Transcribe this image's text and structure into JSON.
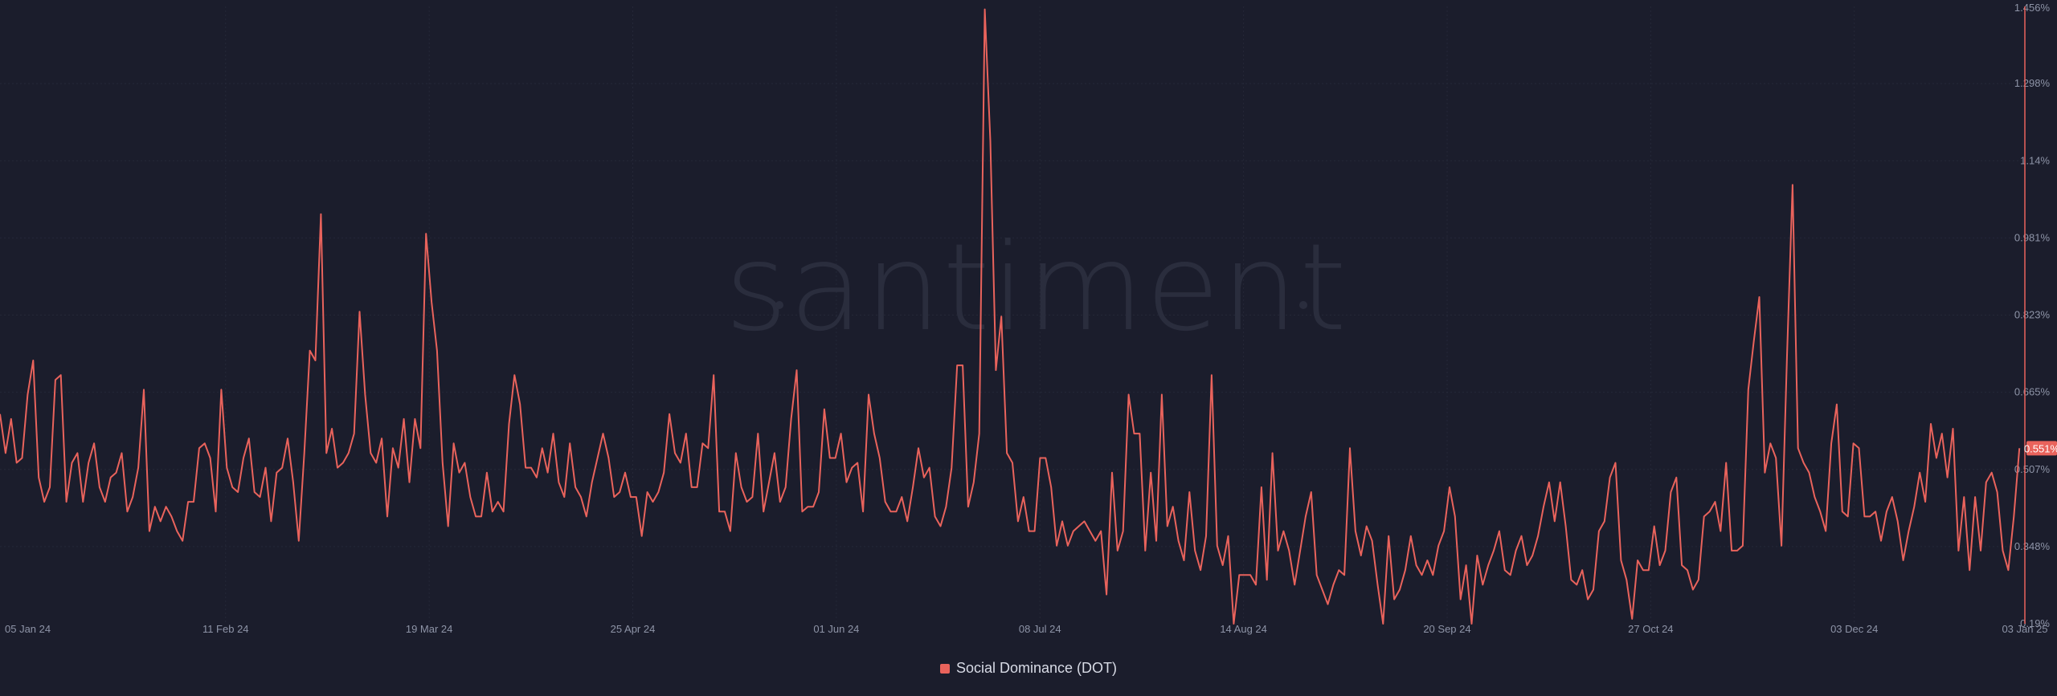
{
  "watermark": "santiment",
  "colors": {
    "background": "#1b1d2c",
    "series": "#e9635c",
    "grid": "#252838",
    "tick": "#8e94a7"
  },
  "chart_data": {
    "type": "line",
    "title": "",
    "xlabel": "",
    "ylabel": "",
    "x_start": "2024-01-01",
    "x_end": "2025-01-03",
    "ylim": [
      0.19,
      1.456
    ],
    "y_ticks": [
      "1.456%",
      "1.298%",
      "1.14%",
      "0.981%",
      "0.823%",
      "0.665%",
      "0.507%",
      "0.348%",
      "0.19%"
    ],
    "x_ticks": [
      {
        "date": "2024-01-05",
        "label": "05 Jan 24"
      },
      {
        "date": "2024-02-11",
        "label": "11 Feb 24"
      },
      {
        "date": "2024-03-19",
        "label": "19 Mar 24"
      },
      {
        "date": "2024-04-25",
        "label": "25 Apr 24"
      },
      {
        "date": "2024-06-01",
        "label": "01 Jun 24"
      },
      {
        "date": "2024-07-08",
        "label": "08 Jul 24"
      },
      {
        "date": "2024-08-14",
        "label": "14 Aug 24"
      },
      {
        "date": "2024-09-20",
        "label": "20 Sep 24"
      },
      {
        "date": "2024-10-27",
        "label": "27 Oct 24"
      },
      {
        "date": "2024-12-03",
        "label": "03 Dec 24"
      },
      {
        "date": "2025-01-03",
        "label": "03 Jan 25"
      }
    ],
    "last_value_label": "0.551%",
    "series": [
      {
        "name": "Social Dominance (DOT)",
        "values": [
          0.62,
          0.54,
          0.61,
          0.52,
          0.53,
          0.66,
          0.73,
          0.49,
          0.44,
          0.47,
          0.69,
          0.7,
          0.44,
          0.52,
          0.54,
          0.44,
          0.52,
          0.56,
          0.47,
          0.44,
          0.49,
          0.5,
          0.54,
          0.42,
          0.45,
          0.51,
          0.67,
          0.38,
          0.43,
          0.4,
          0.43,
          0.41,
          0.38,
          0.36,
          0.44,
          0.44,
          0.55,
          0.56,
          0.53,
          0.42,
          0.67,
          0.51,
          0.47,
          0.46,
          0.53,
          0.57,
          0.46,
          0.45,
          0.51,
          0.4,
          0.5,
          0.51,
          0.57,
          0.48,
          0.36,
          0.54,
          0.75,
          0.73,
          1.03,
          0.54,
          0.59,
          0.51,
          0.52,
          0.54,
          0.58,
          0.83,
          0.66,
          0.54,
          0.52,
          0.57,
          0.41,
          0.55,
          0.51,
          0.61,
          0.48,
          0.61,
          0.55,
          0.99,
          0.85,
          0.75,
          0.52,
          0.39,
          0.56,
          0.5,
          0.52,
          0.45,
          0.41,
          0.41,
          0.5,
          0.42,
          0.44,
          0.42,
          0.6,
          0.7,
          0.64,
          0.51,
          0.51,
          0.49,
          0.55,
          0.5,
          0.58,
          0.48,
          0.45,
          0.56,
          0.47,
          0.45,
          0.41,
          0.48,
          0.53,
          0.58,
          0.53,
          0.45,
          0.46,
          0.5,
          0.45,
          0.45,
          0.37,
          0.46,
          0.44,
          0.46,
          0.5,
          0.62,
          0.54,
          0.52,
          0.58,
          0.47,
          0.47,
          0.56,
          0.55,
          0.7,
          0.42,
          0.42,
          0.38,
          0.54,
          0.47,
          0.44,
          0.45,
          0.58,
          0.42,
          0.48,
          0.54,
          0.44,
          0.47,
          0.61,
          0.71,
          0.42,
          0.43,
          0.43,
          0.46,
          0.63,
          0.53,
          0.53,
          0.58,
          0.48,
          0.51,
          0.52,
          0.42,
          0.66,
          0.58,
          0.53,
          0.44,
          0.42,
          0.42,
          0.45,
          0.4,
          0.47,
          0.55,
          0.49,
          0.51,
          0.41,
          0.39,
          0.43,
          0.51,
          0.72,
          0.72,
          0.43,
          0.48,
          0.58,
          1.45,
          1.18,
          0.71,
          0.82,
          0.54,
          0.52,
          0.4,
          0.45,
          0.38,
          0.38,
          0.53,
          0.53,
          0.47,
          0.35,
          0.4,
          0.35,
          0.38,
          0.39,
          0.4,
          0.38,
          0.36,
          0.38,
          0.25,
          0.5,
          0.34,
          0.38,
          0.66,
          0.58,
          0.58,
          0.34,
          0.5,
          0.36,
          0.66,
          0.39,
          0.43,
          0.36,
          0.32,
          0.46,
          0.34,
          0.3,
          0.37,
          0.7,
          0.35,
          0.31,
          0.37,
          0.19,
          0.29,
          0.29,
          0.29,
          0.27,
          0.47,
          0.28,
          0.54,
          0.34,
          0.38,
          0.34,
          0.27,
          0.34,
          0.41,
          0.46,
          0.29,
          0.26,
          0.23,
          0.27,
          0.3,
          0.29,
          0.55,
          0.38,
          0.33,
          0.39,
          0.36,
          0.27,
          0.19,
          0.37,
          0.24,
          0.26,
          0.3,
          0.37,
          0.31,
          0.29,
          0.32,
          0.29,
          0.35,
          0.38,
          0.47,
          0.41,
          0.24,
          0.31,
          0.19,
          0.33,
          0.27,
          0.31,
          0.34,
          0.38,
          0.3,
          0.29,
          0.34,
          0.37,
          0.31,
          0.33,
          0.37,
          0.43,
          0.48,
          0.4,
          0.48,
          0.39,
          0.28,
          0.27,
          0.3,
          0.24,
          0.26,
          0.38,
          0.4,
          0.49,
          0.52,
          0.32,
          0.28,
          0.2,
          0.32,
          0.3,
          0.3,
          0.39,
          0.31,
          0.34,
          0.46,
          0.49,
          0.31,
          0.3,
          0.26,
          0.28,
          0.41,
          0.42,
          0.44,
          0.38,
          0.52,
          0.34,
          0.34,
          0.35,
          0.67,
          0.77,
          0.86,
          0.5,
          0.56,
          0.53,
          0.35,
          0.74,
          1.09,
          0.55,
          0.52,
          0.5,
          0.45,
          0.42,
          0.38,
          0.56,
          0.64,
          0.42,
          0.41,
          0.56,
          0.55,
          0.41,
          0.41,
          0.42,
          0.36,
          0.42,
          0.45,
          0.4,
          0.32,
          0.38,
          0.43,
          0.5,
          0.44,
          0.6,
          0.53,
          0.58,
          0.49,
          0.59,
          0.34,
          0.45,
          0.3,
          0.45,
          0.34,
          0.48,
          0.5,
          0.46,
          0.34,
          0.3,
          0.41,
          0.55
        ]
      }
    ]
  }
}
